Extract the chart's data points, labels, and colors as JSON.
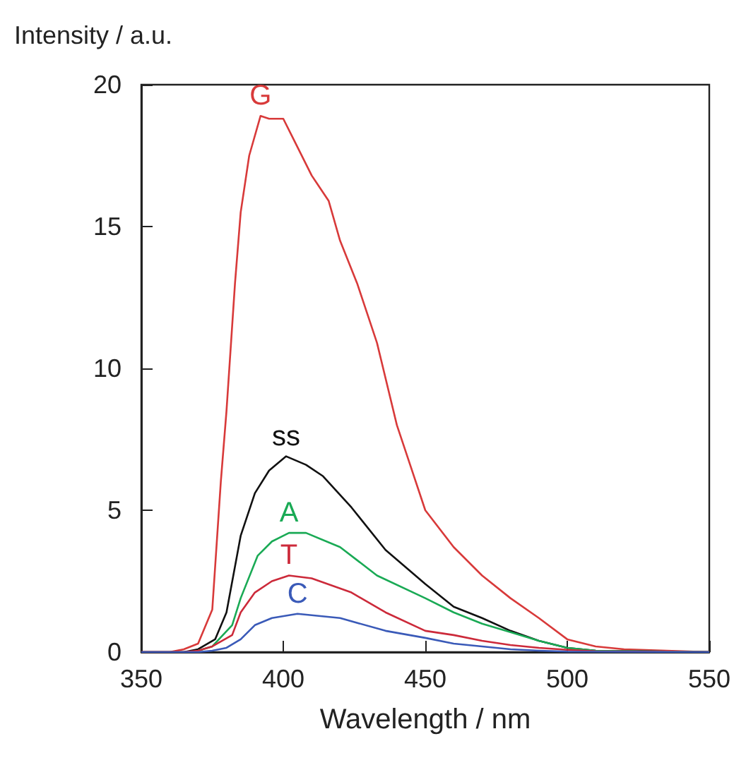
{
  "chart_data": {
    "type": "line",
    "xlabel": "Wavelength / nm",
    "ylabel": "Intensity / a.u.",
    "xlim": [
      350,
      550
    ],
    "xticks": [
      350,
      400,
      450,
      500,
      550
    ],
    "ylim": [
      0,
      20
    ],
    "yticks": [
      0,
      5,
      10,
      15,
      20
    ],
    "grid": false,
    "legend": false,
    "marker": "none",
    "line_style": "solid",
    "series": [
      {
        "color": "#d83a3a",
        "name": "G",
        "x": [
          350,
          360,
          365,
          370,
          375,
          378,
          380,
          383,
          385,
          388,
          392,
          395,
          400,
          404,
          410,
          416,
          420,
          426,
          430,
          433,
          440,
          445,
          450,
          460,
          470,
          480,
          490,
          500,
          510,
          520,
          550
        ],
        "values": [
          0,
          0,
          0.1,
          0.3,
          1.5,
          6,
          8.5,
          13,
          15.5,
          17.5,
          18.9,
          18.8,
          18.8,
          18,
          16.8,
          15.9,
          14.5,
          13,
          11.8,
          10.9,
          8,
          6.5,
          5,
          3.7,
          2.7,
          1.9,
          1.2,
          0.45,
          0.2,
          0.1,
          0
        ]
      },
      {
        "color": "#111111",
        "name": "ss",
        "x": [
          350,
          365,
          370,
          376,
          380,
          385,
          390,
          395,
          401,
          408,
          414,
          424,
          436,
          450,
          460,
          470,
          480,
          490,
          500,
          510,
          550
        ],
        "values": [
          0,
          0,
          0.1,
          0.45,
          1.4,
          4.1,
          5.6,
          6.4,
          6.9,
          6.6,
          6.2,
          5.1,
          3.6,
          2.4,
          1.6,
          1.2,
          0.75,
          0.4,
          0.15,
          0.05,
          0
        ]
      },
      {
        "color": "#1aaa55",
        "name": "A",
        "x": [
          370,
          375,
          382,
          385,
          391,
          396,
          402,
          408,
          420,
          433,
          450,
          460,
          470,
          480,
          490,
          500,
          510,
          550
        ],
        "values": [
          0.05,
          0.2,
          0.95,
          1.9,
          3.4,
          3.9,
          4.2,
          4.2,
          3.7,
          2.7,
          1.9,
          1.4,
          1,
          0.7,
          0.4,
          0.15,
          0.05,
          0
        ]
      },
      {
        "color": "#cc2a3a",
        "name": "T",
        "x": [
          350,
          365,
          370,
          375,
          382,
          385,
          390,
          396,
          402,
          410,
          424,
          436,
          450,
          460,
          470,
          480,
          490,
          500,
          510,
          550
        ],
        "values": [
          0,
          0,
          0.05,
          0.2,
          0.6,
          1.4,
          2.1,
          2.5,
          2.7,
          2.6,
          2.1,
          1.4,
          0.75,
          0.6,
          0.4,
          0.25,
          0.15,
          0.08,
          0.03,
          0
        ]
      },
      {
        "color": "#3a5ab8",
        "name": "C",
        "x": [
          350,
          370,
          375,
          380,
          385,
          390,
          396,
          405,
          420,
          436,
          450,
          460,
          470,
          480,
          490,
          500,
          550
        ],
        "values": [
          0,
          0,
          0.05,
          0.15,
          0.45,
          0.95,
          1.2,
          1.35,
          1.2,
          0.75,
          0.5,
          0.3,
          0.2,
          0.1,
          0.05,
          0.02,
          0
        ]
      }
    ]
  }
}
